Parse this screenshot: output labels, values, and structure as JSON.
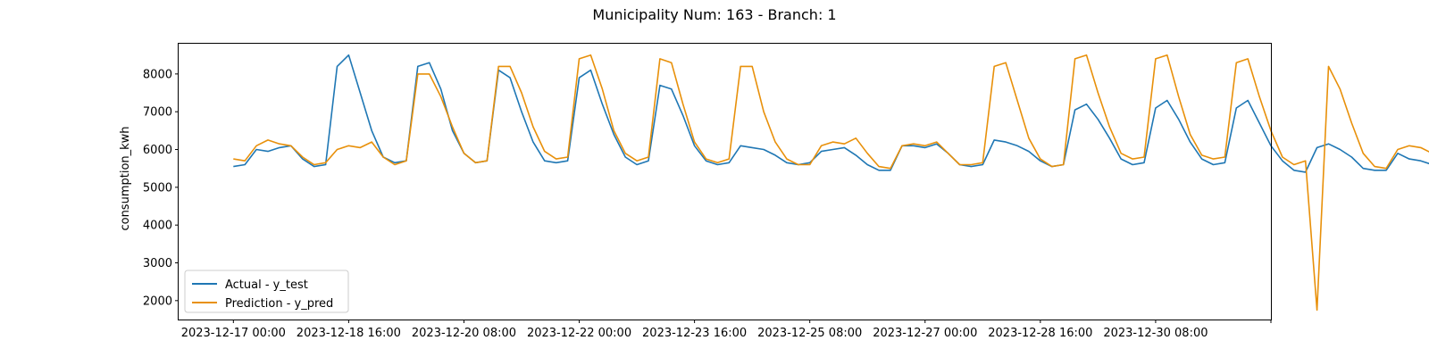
{
  "chart_data": {
    "type": "line",
    "title": "Municipality Num: 163 - Branch: 1",
    "xlabel": "",
    "ylabel": "consumption_kwh",
    "x_start": "2023-12-17 00:00",
    "x_step_hours": 4,
    "xlim": [
      "2023-12-16 05:00",
      "2024-01-01 00:00"
    ],
    "ylim": [
      1500,
      8800
    ],
    "x_ticks": [
      "2023-12-17 00:00",
      "2023-12-18 16:00",
      "2023-12-20 08:00",
      "2023-12-22 00:00",
      "2023-12-23 16:00",
      "2023-12-25 08:00",
      "2023-12-27 00:00",
      "2023-12-28 16:00",
      "2023-12-30 08:00",
      "2024-01-01 00:00"
    ],
    "x_tick_labels": [
      "2023-12-17 00:00",
      "2023-12-18 16:00",
      "2023-12-20 08:00",
      "2023-12-22 00:00",
      "2023-12-23 16:00",
      "2023-12-25 08:00",
      "2023-12-27 00:00",
      "2023-12-28 16:00",
      "2023-12-30 08:00",
      ""
    ],
    "y_ticks": [
      2000,
      3000,
      4000,
      5000,
      6000,
      7000,
      8000
    ],
    "grid": false,
    "legend_position": "lower-left",
    "series": [
      {
        "name": "Actual - y_test",
        "color": "#1f77b4",
        "values": [
          5550,
          5600,
          6000,
          5950,
          6050,
          6100,
          5750,
          5550,
          5600,
          8200,
          8500,
          7500,
          6500,
          5800,
          5650,
          5700,
          8200,
          8300,
          7600,
          6500,
          5900,
          5650,
          5700,
          8100,
          7900,
          7000,
          6200,
          5700,
          5650,
          5700,
          7900,
          8100,
          7200,
          6400,
          5800,
          5600,
          5700,
          7700,
          7600,
          6900,
          6100,
          5700,
          5600,
          5650,
          6100,
          6050,
          6000,
          5850,
          5650,
          5600,
          5650,
          5950,
          6000,
          6050,
          5850,
          5600,
          5450,
          5450,
          6100,
          6100,
          6050,
          6150,
          5900,
          5600,
          5550,
          5600,
          6250,
          6200,
          6100,
          5950,
          5700,
          5550,
          5600,
          7050,
          7200,
          6800,
          6300,
          5750,
          5600,
          5650,
          7100,
          7300,
          6800,
          6200,
          5750,
          5600,
          5650,
          7100,
          7300,
          6700,
          6100,
          5700,
          5450,
          5400,
          6050,
          6150,
          6000,
          5800,
          5500,
          5450,
          5450,
          5900,
          5750,
          5700,
          5600,
          5450
        ]
      },
      {
        "name": "Prediction - y_pred",
        "color": "#e8900a",
        "values": [
          5750,
          5700,
          6100,
          6250,
          6150,
          6100,
          5800,
          5600,
          5650,
          6000,
          6100,
          6050,
          6200,
          5800,
          5600,
          5700,
          8000,
          8000,
          7400,
          6600,
          5900,
          5650,
          5700,
          8200,
          8200,
          7500,
          6600,
          5950,
          5750,
          5800,
          8400,
          8500,
          7600,
          6500,
          5900,
          5700,
          5800,
          8400,
          8300,
          7200,
          6200,
          5750,
          5650,
          5750,
          8200,
          8200,
          7000,
          6200,
          5750,
          5600,
          5600,
          6100,
          6200,
          6150,
          6300,
          5900,
          5550,
          5500,
          6100,
          6150,
          6100,
          6200,
          5900,
          5600,
          5600,
          5650,
          8200,
          8300,
          7300,
          6300,
          5750,
          5550,
          5600,
          8400,
          8500,
          7500,
          6600,
          5900,
          5750,
          5800,
          8400,
          8500,
          7400,
          6400,
          5850,
          5750,
          5800,
          8300,
          8400,
          7400,
          6500,
          5800,
          5600,
          5700,
          1750,
          8200,
          7600,
          6700,
          5900,
          5550,
          5500,
          6000,
          6100,
          6050,
          5900,
          5650
        ]
      }
    ]
  }
}
